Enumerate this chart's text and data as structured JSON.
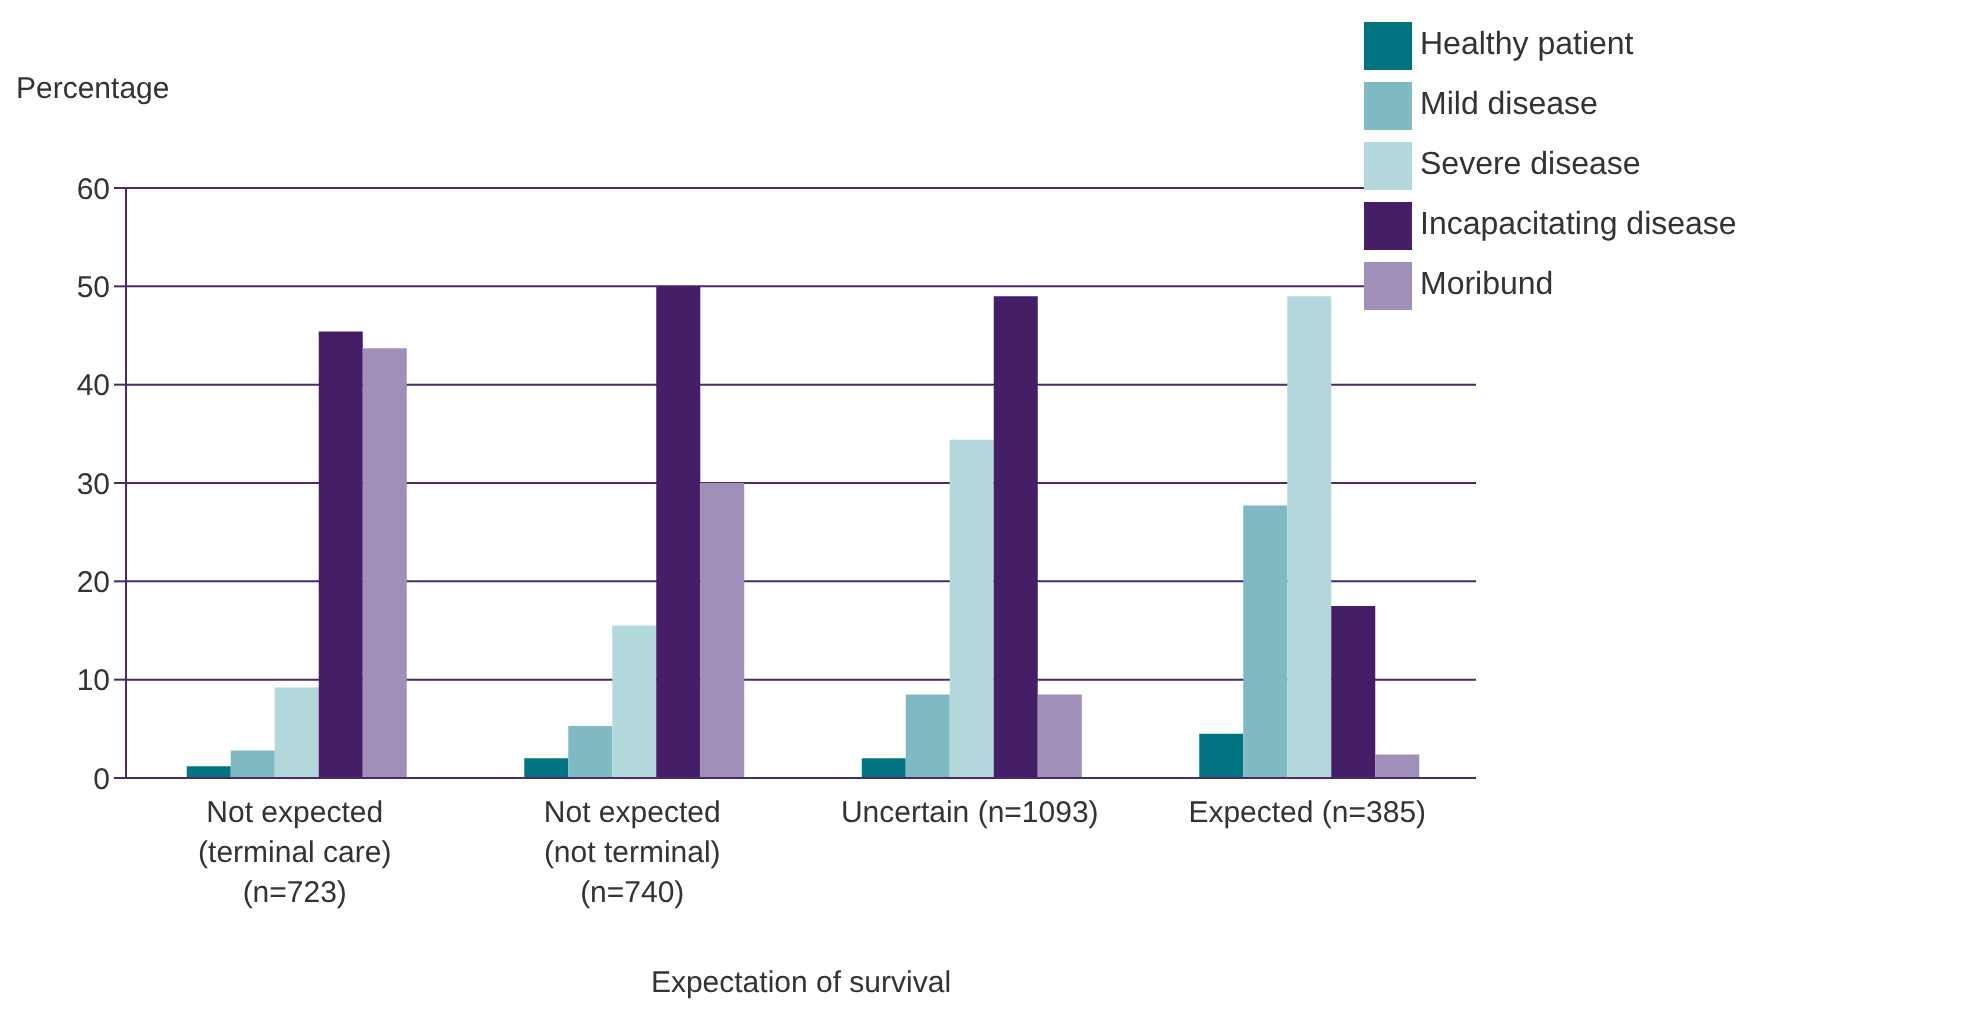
{
  "chart_data": {
    "type": "bar",
    "ylabel": "Percentage",
    "xlabel": "Expectation of survival",
    "categories": [
      "Not expected (terminal care) (n=723)",
      "Not expected (not terminal) (n=740)",
      "Uncertain (n=1093)",
      "Expected (n=385)"
    ],
    "series": [
      {
        "name": "Healthy patient",
        "color": "#007480",
        "values": [
          1.2,
          2,
          2,
          4.5
        ]
      },
      {
        "name": "Mild disease",
        "color": "#7fbac2",
        "values": [
          2.8,
          5.3,
          8.5,
          27.7
        ]
      },
      {
        "name": "Severe disease",
        "color": "#b2d8dc",
        "values": [
          9.2,
          15.5,
          34.4,
          49
        ]
      },
      {
        "name": "Incapacitating disease",
        "color": "#441e66",
        "values": [
          45.4,
          50,
          49,
          17.5
        ]
      },
      {
        "name": "Moribund",
        "color": "#a08fb8",
        "values": [
          43.7,
          30,
          8.5,
          2.4
        ]
      }
    ],
    "ylim": [
      0,
      60
    ],
    "yticks": [
      0,
      10,
      20,
      30,
      40,
      50,
      60
    ],
    "grid": "y",
    "legend": "top right"
  }
}
